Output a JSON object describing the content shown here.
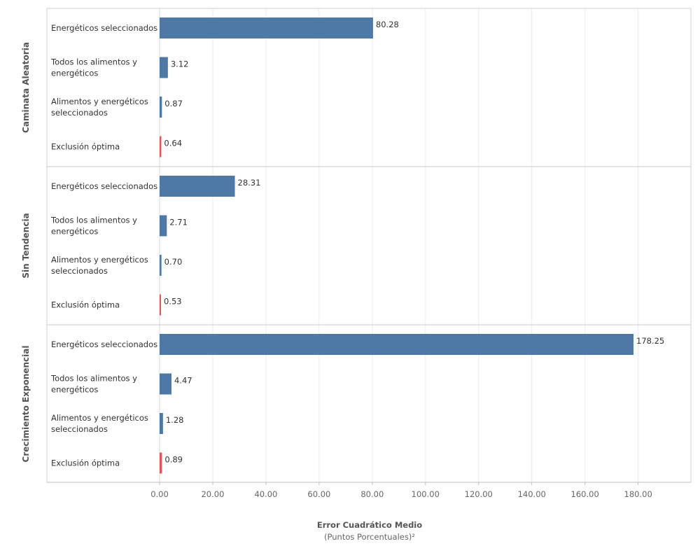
{
  "chart_data": {
    "type": "bar",
    "orientation": "horizontal",
    "grid": true,
    "xlim": [
      0,
      200
    ],
    "x_ticks": [
      "0.00",
      "20.00",
      "40.00",
      "60.00",
      "80.00",
      "100.00",
      "120.00",
      "140.00",
      "160.00",
      "180.00"
    ],
    "xlabel": "Error Cuadrático Medio",
    "xlabel_sub": "(Puntos Porcentuales)²",
    "colors": {
      "default": "#4e79a7",
      "highlight": "#e15759"
    },
    "panels": [
      {
        "name": "Caminata Aleatoria",
        "bars": [
          {
            "category": "Energéticos seleccionados",
            "value": 80.28,
            "label": "80.28",
            "highlight": false
          },
          {
            "category": "Todos los alimentos y energéticos",
            "value": 3.12,
            "label": "3.12",
            "highlight": false
          },
          {
            "category": "Alimentos y energéticos seleccionados",
            "value": 0.87,
            "label": "0.87",
            "highlight": false
          },
          {
            "category": "Exclusión óptima",
            "value": 0.64,
            "label": "0.64",
            "highlight": true
          }
        ]
      },
      {
        "name": "Sin Tendencia",
        "bars": [
          {
            "category": "Energéticos seleccionados",
            "value": 28.31,
            "label": "28.31",
            "highlight": false
          },
          {
            "category": "Todos los alimentos y energéticos",
            "value": 2.71,
            "label": "2.71",
            "highlight": false
          },
          {
            "category": "Alimentos y energéticos seleccionados",
            "value": 0.7,
            "label": "0.70",
            "highlight": false
          },
          {
            "category": "Exclusión óptima",
            "value": 0.53,
            "label": "0.53",
            "highlight": true
          }
        ]
      },
      {
        "name": "Crecimiento Exponencial",
        "bars": [
          {
            "category": "Energéticos seleccionados",
            "value": 178.25,
            "label": "178.25",
            "highlight": false
          },
          {
            "category": "Todos los alimentos y energéticos",
            "value": 4.47,
            "label": "4.47",
            "highlight": false
          },
          {
            "category": "Alimentos y energéticos seleccionados",
            "value": 1.28,
            "label": "1.28",
            "highlight": false
          },
          {
            "category": "Exclusión óptima",
            "value": 0.89,
            "label": "0.89",
            "highlight": true
          }
        ]
      }
    ]
  }
}
